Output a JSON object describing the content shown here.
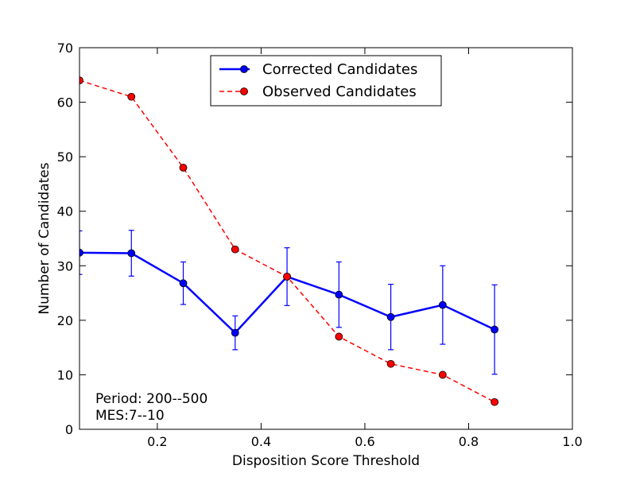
{
  "chart_data": {
    "type": "line",
    "xlabel": "Disposition Score Threshold",
    "ylabel": "Number of Candidates",
    "xlim": [
      0.05,
      1.0
    ],
    "ylim": [
      0,
      70
    ],
    "x_ticks": [
      0.2,
      0.4,
      0.6,
      0.8,
      1.0
    ],
    "x_tick_labels": [
      "0.2",
      "0.4",
      "0.6",
      "0.8",
      "1.0"
    ],
    "y_ticks": [
      0,
      10,
      20,
      30,
      40,
      50,
      60,
      70
    ],
    "y_tick_labels": [
      "0",
      "10",
      "20",
      "30",
      "40",
      "50",
      "60",
      "70"
    ],
    "grid": false,
    "legend_position": "top-center",
    "annotation_lines": [
      "Period: 200--500",
      "MES:7--10"
    ],
    "series": [
      {
        "name": "Corrected Candidates",
        "color": "#0000ff",
        "line_style": "solid",
        "marker": "circle",
        "x": [
          0.05,
          0.15,
          0.25,
          0.35,
          0.45,
          0.55,
          0.65,
          0.75,
          0.85
        ],
        "y": [
          32.4,
          32.3,
          26.8,
          17.7,
          28.0,
          24.7,
          20.6,
          22.8,
          18.3
        ],
        "error": [
          4.0,
          4.2,
          3.9,
          3.1,
          5.3,
          6.0,
          6.0,
          7.2,
          8.2
        ]
      },
      {
        "name": "Observed Candidates",
        "color": "#ff0000",
        "line_style": "dashed",
        "marker": "circle",
        "x": [
          0.05,
          0.15,
          0.25,
          0.35,
          0.45,
          0.55,
          0.65,
          0.75,
          0.85
        ],
        "y": [
          64,
          61,
          48,
          33,
          28,
          17,
          12,
          10,
          5
        ]
      }
    ]
  }
}
